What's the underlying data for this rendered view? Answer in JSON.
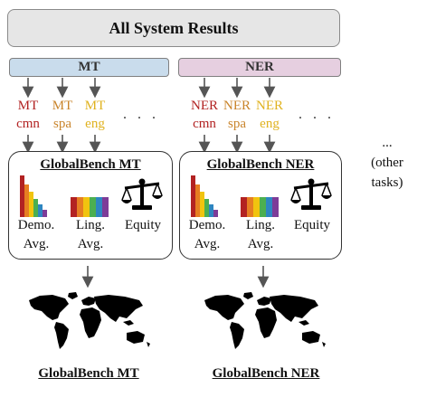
{
  "header": {
    "title": "All System Results"
  },
  "tasks": [
    {
      "id": "mt",
      "label": "MT",
      "languages": [
        {
          "line1": "MT",
          "line2": "cmn",
          "color": "#b22222"
        },
        {
          "line1": "MT",
          "line2": "spa",
          "color": "#c9842b"
        },
        {
          "line1": "MT",
          "line2": "eng",
          "color": "#e0b21e"
        }
      ],
      "more": ". . .",
      "benchmark_title": "GlobalBench MT",
      "metrics": [
        {
          "line1": "Demo.",
          "line2": "Avg.",
          "icon": "histogram-icon"
        },
        {
          "line1": "Ling.",
          "line2": "Avg.",
          "icon": "rainbow-bars-icon"
        },
        {
          "line1": "Equity",
          "line2": "",
          "icon": "balance-scale-icon"
        }
      ],
      "output_label": "GlobalBench MT"
    },
    {
      "id": "ner",
      "label": "NER",
      "languages": [
        {
          "line1": "NER",
          "line2": "cmn",
          "color": "#b22222"
        },
        {
          "line1": "NER",
          "line2": "spa",
          "color": "#c9842b"
        },
        {
          "line1": "NER",
          "line2": "eng",
          "color": "#e0b21e"
        }
      ],
      "more": ". . .",
      "benchmark_title": "GlobalBench NER",
      "metrics": [
        {
          "line1": "Demo.",
          "line2": "Avg.",
          "icon": "histogram-icon"
        },
        {
          "line1": "Ling.",
          "line2": "Avg.",
          "icon": "rainbow-bars-icon"
        },
        {
          "line1": "Equity",
          "line2": "",
          "icon": "balance-scale-icon"
        }
      ],
      "output_label": "GlobalBench NER"
    }
  ],
  "other_tasks": {
    "line1": "...",
    "line2": "(other",
    "line3": "tasks)"
  },
  "colors": {
    "mt_bar": "#c9dcec",
    "ner_bar": "#e6cfe0",
    "header_bg": "#e6e6e6",
    "rainbow": [
      "#b22222",
      "#e67e22",
      "#f1c40f",
      "#4caf50",
      "#2e86c1",
      "#7d3c98"
    ]
  }
}
